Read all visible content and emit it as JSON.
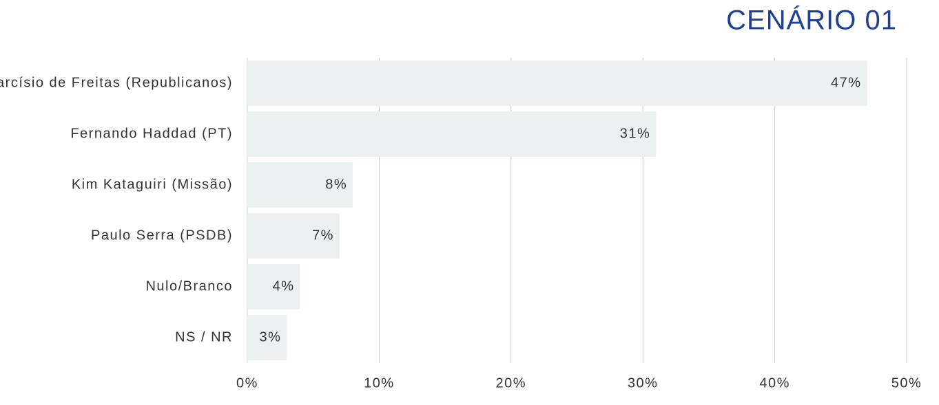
{
  "chart_data": {
    "type": "bar",
    "orientation": "horizontal",
    "title": "CENÁRIO 01",
    "categories": [
      "Tarcísio de Freitas (Republicanos)",
      "Fernando Haddad (PT)",
      "Kim Kataguiri (Missão)",
      "Paulo Serra (PSDB)",
      "Nulo/Branco",
      "NS / NR"
    ],
    "values": [
      47,
      31,
      8,
      7,
      4,
      3
    ],
    "value_labels": [
      "47%",
      "31%",
      "8%",
      "7%",
      "4%",
      "3%"
    ],
    "color": "#ecf0f1",
    "xlim": [
      0,
      50
    ],
    "xticks": [
      {
        "value": 0,
        "label": "0%"
      },
      {
        "value": 10,
        "label": "10%"
      },
      {
        "value": 20,
        "label": "20%"
      },
      {
        "value": 30,
        "label": "30%"
      },
      {
        "value": 40,
        "label": "40%"
      },
      {
        "value": 50,
        "label": "50%"
      }
    ],
    "grid": true
  }
}
